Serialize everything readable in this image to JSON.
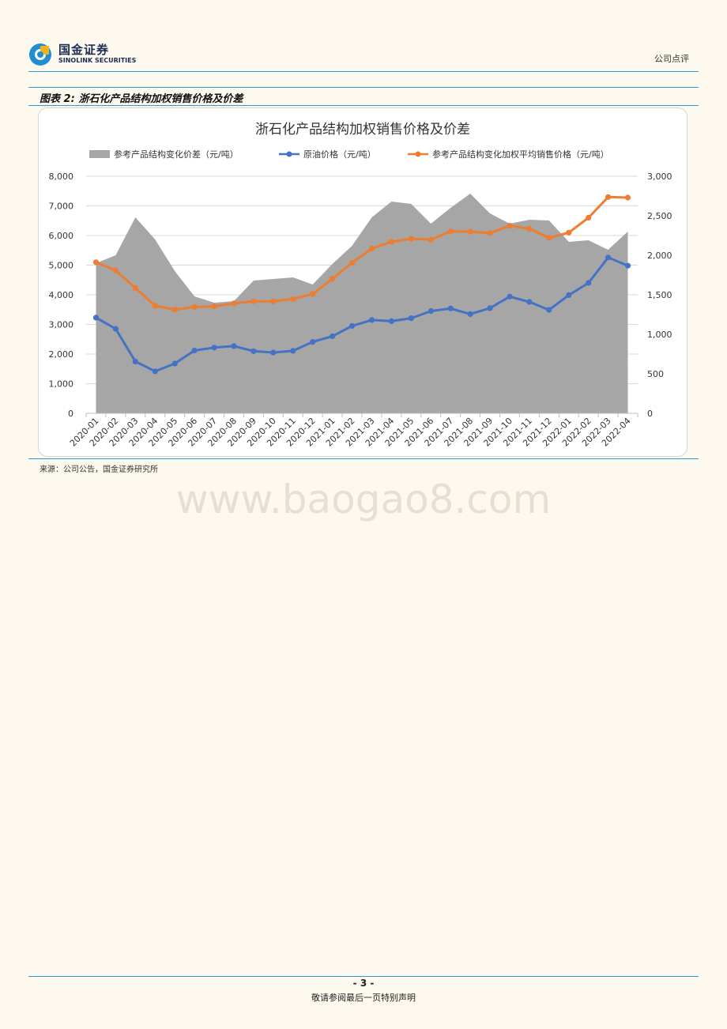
{
  "header": {
    "logo_cn": "国金证券",
    "logo_en": "SINOLINK SECURITIES",
    "doc_type": "公司点评"
  },
  "figure": {
    "label": "图表 2:",
    "title": "浙石化产品结构加权销售价格及价差",
    "source": "来源：公司公告，国金证券研究所"
  },
  "colors": {
    "area": "#a6a6a6",
    "crude": "#4472c4",
    "avg_price": "#ed7d31",
    "rule": "#2c9ad6"
  },
  "chart_data": {
    "type": "line",
    "title": "浙石化产品结构加权销售价格及价差",
    "categories": [
      "2020-01",
      "2020-02",
      "2020-03",
      "2020-04",
      "2020-05",
      "2020-06",
      "2020-07",
      "2020-08",
      "2020-09",
      "2020-10",
      "2020-11",
      "2020-12",
      "2021-01",
      "2021-02",
      "2021-03",
      "2021-04",
      "2021-05",
      "2021-06",
      "2021-07",
      "2021-08",
      "2021-09",
      "2021-10",
      "2021-11",
      "2021-12",
      "2022-01",
      "2022-02",
      "2022-03",
      "2022-04"
    ],
    "y_left": {
      "min": 0,
      "max": 8000,
      "ticks": [
        "0",
        "1,000",
        "2,000",
        "3,000",
        "4,000",
        "5,000",
        "6,000",
        "7,000",
        "8,000"
      ]
    },
    "y_right": {
      "min": 0,
      "max": 3000,
      "ticks": [
        "0",
        "500",
        "1,000",
        "1,500",
        "2,000",
        "2,500",
        "3,000"
      ]
    },
    "legend_position": "top",
    "series": [
      {
        "name": "参考产品结构变化价差（元/吨）",
        "type": "area",
        "axis": "right",
        "values": [
          1900,
          2000,
          2480,
          2200,
          1800,
          1480,
          1400,
          1420,
          1680,
          1700,
          1720,
          1630,
          1890,
          2120,
          2480,
          2680,
          2650,
          2400,
          2600,
          2780,
          2530,
          2400,
          2450,
          2440,
          2170,
          2190,
          2070,
          2300
        ]
      },
      {
        "name": "原油价格（元/吨）",
        "type": "line",
        "axis": "left",
        "values": [
          3230,
          2850,
          1750,
          1420,
          1680,
          2120,
          2220,
          2270,
          2100,
          2050,
          2110,
          2410,
          2600,
          2950,
          3150,
          3110,
          3210,
          3450,
          3540,
          3350,
          3550,
          3940,
          3760,
          3490,
          3990,
          4400,
          5260,
          4980
        ]
      },
      {
        "name": "参考产品结构变化加权平均销售价格（元/吨）",
        "type": "line",
        "axis": "left",
        "values": [
          5100,
          4820,
          4230,
          3630,
          3500,
          3590,
          3610,
          3710,
          3780,
          3780,
          3860,
          4030,
          4540,
          5080,
          5560,
          5790,
          5890,
          5860,
          6140,
          6130,
          6080,
          6330,
          6230,
          5920,
          6100,
          6600,
          7300,
          7280
        ]
      }
    ]
  },
  "footer": {
    "page": "- 3 -",
    "note": "敬请参阅最后一页特别声明"
  },
  "watermark": "www.baogao8.com"
}
